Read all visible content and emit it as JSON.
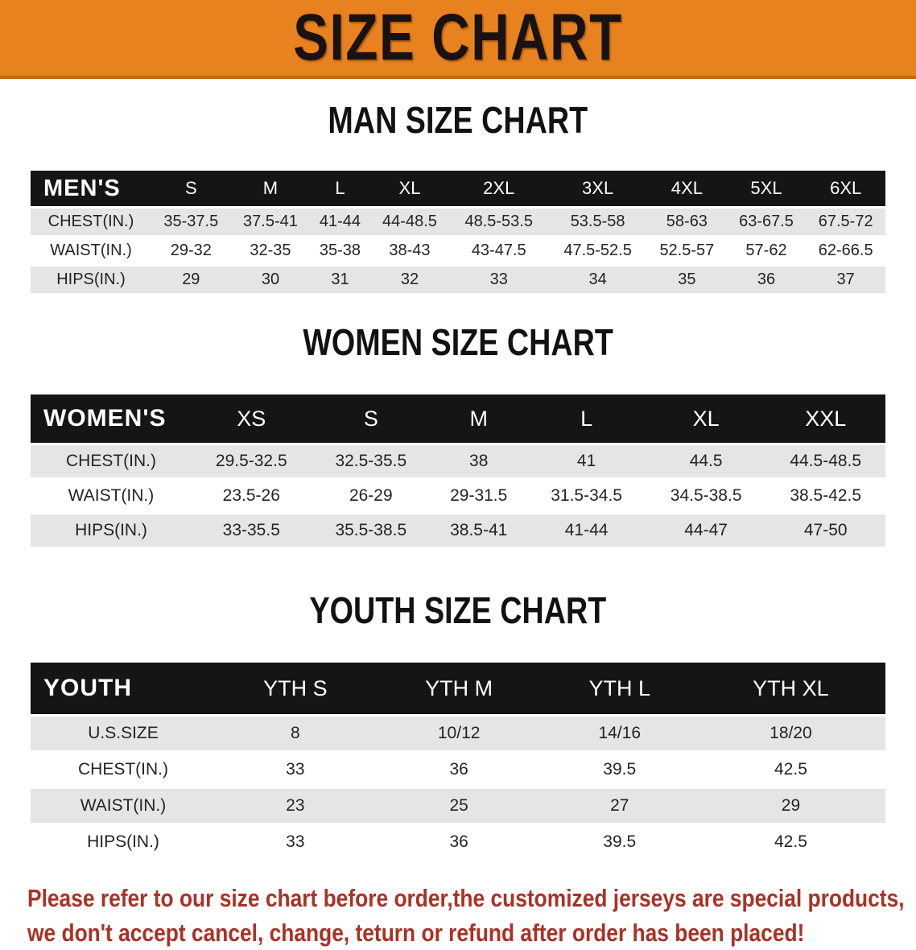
{
  "banner": {
    "title": "SIZE CHART",
    "bg_color": "#E8821E",
    "text_color": "#181212"
  },
  "sections": [
    {
      "heading": "MAN SIZE CHART",
      "table": {
        "label": "MEN'S",
        "columns": [
          "S",
          "M",
          "L",
          "XL",
          "2XL",
          "3XL",
          "4XL",
          "5XL",
          "6XL"
        ],
        "rows": [
          {
            "label": "CHEST(IN.)",
            "values": [
              "35-37.5",
              "37.5-41",
              "41-44",
              "44-48.5",
              "48.5-53.5",
              "53.5-58",
              "58-63",
              "63-67.5",
              "67.5-72"
            ]
          },
          {
            "label": "WAIST(IN.)",
            "values": [
              "29-32",
              "32-35",
              "35-38",
              "38-43",
              "43-47.5",
              "47.5-52.5",
              "52.5-57",
              "57-62",
              "62-66.5"
            ]
          },
          {
            "label": "HIPS(IN.)",
            "values": [
              "29",
              "30",
              "31",
              "32",
              "33",
              "34",
              "35",
              "36",
              "37"
            ]
          }
        ]
      }
    },
    {
      "heading": "WOMEN SIZE CHART",
      "table": {
        "label": "WOMEN'S",
        "columns": [
          "XS",
          "S",
          "M",
          "L",
          "XL",
          "XXL"
        ],
        "rows": [
          {
            "label": "CHEST(IN.)",
            "values": [
              "29.5-32.5",
              "32.5-35.5",
              "38",
              "41",
              "44.5",
              "44.5-48.5"
            ]
          },
          {
            "label": "WAIST(IN.)",
            "values": [
              "23.5-26",
              "26-29",
              "29-31.5",
              "31.5-34.5",
              "34.5-38.5",
              "38.5-42.5"
            ]
          },
          {
            "label": "HIPS(IN.)",
            "values": [
              "33-35.5",
              "35.5-38.5",
              "38.5-41",
              "41-44",
              "44-47",
              "47-50"
            ]
          }
        ]
      }
    },
    {
      "heading": "YOUTH SIZE CHART",
      "table": {
        "label": "YOUTH",
        "columns": [
          "YTH S",
          "YTH M",
          "YTH L",
          "YTH XL"
        ],
        "rows": [
          {
            "label": "U.S.SIZE",
            "values": [
              "8",
              "10/12",
              "14/16",
              "18/20"
            ]
          },
          {
            "label": "CHEST(IN.)",
            "values": [
              "33",
              "36",
              "39.5",
              "42.5"
            ]
          },
          {
            "label": "WAIST(IN.)",
            "values": [
              "23",
              "25",
              "27",
              "29"
            ]
          },
          {
            "label": "HIPS(IN.)",
            "values": [
              "33",
              "36",
              "39.5",
              "42.5"
            ]
          }
        ]
      }
    }
  ],
  "footer": {
    "line1": "Please refer to our size chart before order,the customized jerseys are special products,",
    "line2": "we don't accept cancel, change, teturn or refund after order has been placed!",
    "text_color": "#A93226"
  },
  "colors": {
    "header_bar": "#171414",
    "row_stripe": "#E5E5E6",
    "banner_orange": "#E8821E"
  }
}
